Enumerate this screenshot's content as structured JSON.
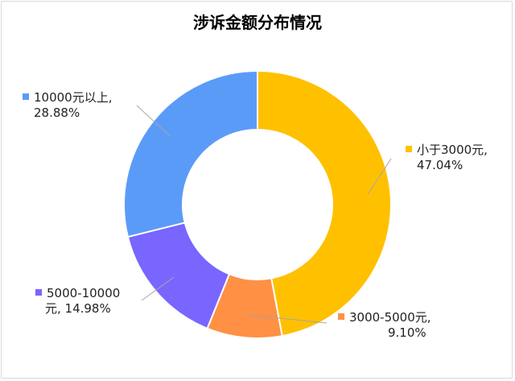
{
  "chart_data": {
    "type": "pie",
    "donut": true,
    "title": "涉诉金额分布情况",
    "slices": [
      {
        "label": "小于3000元",
        "value": 47.04,
        "color": "#FFC000",
        "line1": "小于3000元,",
        "line2": "47.04%"
      },
      {
        "label": "3000-5000元",
        "value": 9.1,
        "color": "#FF9044",
        "line1": "3000-5000元,",
        "line2": "9.10%"
      },
      {
        "label": "5000-10000元",
        "value": 14.98,
        "color": "#7866FF",
        "line1": "5000-10000",
        "line2": "元, 14.98%"
      },
      {
        "label": "10000元以上",
        "value": 28.88,
        "color": "#5B9BF8",
        "line1": "10000元以上,",
        "line2": "28.88%"
      }
    ],
    "legend": "none",
    "leader_color": "#A6A6A6"
  }
}
